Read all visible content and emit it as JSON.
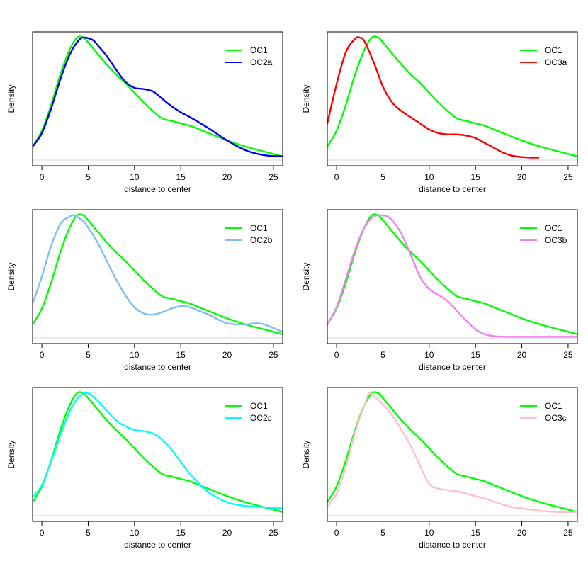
{
  "chart_data": [
    {
      "type": "line",
      "xlabel": "distance to center",
      "ylabel": "Density",
      "xlim": [
        -1,
        26
      ],
      "xticks": [
        0,
        5,
        10,
        15,
        20,
        25
      ],
      "ylim": [
        0,
        1
      ],
      "legend_position": "top-right",
      "series": [
        {
          "name": "OC1",
          "color": "#00ff00",
          "x": [
            -1,
            0,
            1,
            2,
            3,
            3.8,
            4.5,
            5,
            6,
            7,
            8,
            9,
            10,
            11,
            12,
            13,
            14,
            15,
            16,
            18,
            20,
            22,
            24,
            26
          ],
          "y": [
            0.11,
            0.24,
            0.45,
            0.7,
            0.9,
            1.0,
            1.0,
            0.96,
            0.87,
            0.78,
            0.7,
            0.63,
            0.55,
            0.47,
            0.4,
            0.34,
            0.32,
            0.3,
            0.28,
            0.22,
            0.16,
            0.11,
            0.07,
            0.03
          ]
        },
        {
          "name": "OC2a",
          "color": "#0000ee",
          "x": [
            -1,
            0,
            1,
            2,
            3,
            4,
            4.6,
            5.5,
            6,
            7,
            8,
            9,
            10,
            11,
            12,
            13,
            14,
            15,
            16,
            18,
            20,
            22,
            24,
            26
          ],
          "y": [
            0.11,
            0.22,
            0.42,
            0.66,
            0.86,
            0.98,
            1.0,
            0.98,
            0.94,
            0.85,
            0.74,
            0.64,
            0.59,
            0.58,
            0.56,
            0.5,
            0.44,
            0.39,
            0.35,
            0.26,
            0.16,
            0.08,
            0.04,
            0.03
          ]
        }
      ]
    },
    {
      "type": "line",
      "xlabel": "distance to center",
      "ylabel": "Density",
      "xlim": [
        -1,
        26
      ],
      "xticks": [
        0,
        5,
        10,
        15,
        20,
        25
      ],
      "ylim": [
        0,
        1
      ],
      "legend_position": "top-right",
      "series": [
        {
          "name": "OC1",
          "color": "#00ff00",
          "x": [
            -1,
            0,
            1,
            2,
            3,
            3.8,
            4.5,
            5,
            6,
            7,
            8,
            9,
            10,
            11,
            12,
            13,
            14,
            15,
            16,
            18,
            20,
            22,
            24,
            26
          ],
          "y": [
            0.11,
            0.24,
            0.45,
            0.7,
            0.9,
            1.0,
            1.0,
            0.96,
            0.87,
            0.78,
            0.7,
            0.63,
            0.55,
            0.47,
            0.4,
            0.34,
            0.32,
            0.3,
            0.28,
            0.22,
            0.16,
            0.11,
            0.07,
            0.03
          ]
        },
        {
          "name": "OC3a",
          "color": "#ff0000",
          "x": [
            -1,
            0,
            1,
            2,
            2.5,
            3,
            4,
            5,
            6,
            7,
            8,
            9,
            10,
            11,
            12,
            13,
            14,
            15,
            16,
            17,
            18,
            19,
            20,
            21,
            21.8
          ],
          "y": [
            0.3,
            0.62,
            0.88,
            0.99,
            1.0,
            0.97,
            0.8,
            0.6,
            0.47,
            0.4,
            0.35,
            0.3,
            0.25,
            0.22,
            0.21,
            0.21,
            0.2,
            0.18,
            0.14,
            0.1,
            0.06,
            0.035,
            0.025,
            0.02,
            0.02
          ]
        }
      ]
    },
    {
      "type": "line",
      "xlabel": "distance to center",
      "ylabel": "Density",
      "xlim": [
        -1,
        26
      ],
      "xticks": [
        0,
        5,
        10,
        15,
        20,
        25
      ],
      "ylim": [
        0,
        1
      ],
      "legend_position": "top-right",
      "series": [
        {
          "name": "OC1",
          "color": "#00ff00",
          "x": [
            -1,
            0,
            1,
            2,
            3,
            3.8,
            4.5,
            5,
            6,
            7,
            8,
            9,
            10,
            11,
            12,
            13,
            14,
            15,
            16,
            18,
            20,
            22,
            24,
            26
          ],
          "y": [
            0.11,
            0.24,
            0.45,
            0.7,
            0.9,
            1.0,
            1.0,
            0.96,
            0.87,
            0.78,
            0.7,
            0.63,
            0.55,
            0.47,
            0.4,
            0.34,
            0.32,
            0.3,
            0.28,
            0.22,
            0.16,
            0.11,
            0.07,
            0.03
          ]
        },
        {
          "name": "OC2b",
          "color": "#7ec0ee",
          "x": [
            -1,
            0,
            1,
            2,
            3,
            3.5,
            4.5,
            5,
            6,
            7,
            8,
            9,
            10,
            11,
            12,
            13,
            14,
            15,
            16,
            17,
            18,
            20,
            22,
            23,
            24,
            26
          ],
          "y": [
            0.28,
            0.5,
            0.75,
            0.93,
            0.99,
            1.0,
            0.95,
            0.9,
            0.78,
            0.63,
            0.48,
            0.35,
            0.25,
            0.2,
            0.19,
            0.21,
            0.24,
            0.26,
            0.25,
            0.22,
            0.19,
            0.12,
            0.11,
            0.12,
            0.11,
            0.05
          ]
        }
      ]
    },
    {
      "type": "line",
      "xlabel": "distance to center",
      "ylabel": "Density",
      "xlim": [
        -1,
        26
      ],
      "xticks": [
        0,
        5,
        10,
        15,
        20,
        25
      ],
      "ylim": [
        0,
        1
      ],
      "legend_position": "top-right",
      "series": [
        {
          "name": "OC1",
          "color": "#00ff00",
          "x": [
            -1,
            0,
            1,
            2,
            3,
            3.8,
            4.5,
            5,
            6,
            7,
            8,
            9,
            10,
            11,
            12,
            13,
            14,
            15,
            16,
            18,
            20,
            22,
            24,
            26
          ],
          "y": [
            0.11,
            0.24,
            0.45,
            0.7,
            0.9,
            1.0,
            1.0,
            0.96,
            0.87,
            0.78,
            0.7,
            0.63,
            0.55,
            0.47,
            0.4,
            0.34,
            0.32,
            0.3,
            0.28,
            0.22,
            0.16,
            0.11,
            0.07,
            0.03
          ]
        },
        {
          "name": "OC3b",
          "color": "#ee82ee",
          "x": [
            -1,
            0,
            1,
            2,
            3,
            4,
            5,
            5.5,
            6,
            7,
            8,
            9,
            10,
            11,
            12,
            13,
            14,
            15,
            16,
            17,
            18,
            20,
            22,
            24,
            26
          ],
          "y": [
            0.11,
            0.25,
            0.48,
            0.72,
            0.9,
            0.99,
            1.0,
            0.99,
            0.96,
            0.85,
            0.68,
            0.5,
            0.4,
            0.35,
            0.3,
            0.22,
            0.14,
            0.07,
            0.03,
            0.015,
            0.01,
            0.01,
            0.01,
            0.01,
            0.01
          ]
        }
      ]
    },
    {
      "type": "line",
      "xlabel": "distance to center",
      "ylabel": "Density",
      "xlim": [
        -1,
        26
      ],
      "xticks": [
        0,
        5,
        10,
        15,
        20,
        25
      ],
      "ylim": [
        0,
        1
      ],
      "legend_position": "top-right",
      "series": [
        {
          "name": "OC1",
          "color": "#00ff00",
          "x": [
            -1,
            0,
            1,
            2,
            3,
            3.8,
            4.5,
            5,
            6,
            7,
            8,
            9,
            10,
            11,
            12,
            13,
            14,
            15,
            16,
            18,
            20,
            22,
            24,
            26
          ],
          "y": [
            0.11,
            0.24,
            0.45,
            0.7,
            0.9,
            1.0,
            1.0,
            0.96,
            0.87,
            0.78,
            0.7,
            0.63,
            0.55,
            0.47,
            0.4,
            0.34,
            0.32,
            0.3,
            0.28,
            0.22,
            0.16,
            0.11,
            0.07,
            0.03
          ]
        },
        {
          "name": "OC2c",
          "color": "#00ffff",
          "x": [
            -1,
            0,
            1,
            2,
            3,
            4,
            5,
            6,
            7,
            8,
            9,
            10,
            11,
            12,
            13,
            14,
            15,
            16,
            17,
            18,
            20,
            22,
            24,
            26
          ],
          "y": [
            0.15,
            0.25,
            0.44,
            0.66,
            0.85,
            0.97,
            1.0,
            0.94,
            0.86,
            0.78,
            0.73,
            0.7,
            0.69,
            0.67,
            0.62,
            0.54,
            0.44,
            0.34,
            0.26,
            0.19,
            0.11,
            0.08,
            0.07,
            0.06
          ]
        }
      ]
    },
    {
      "type": "line",
      "xlabel": "distance to center",
      "ylabel": "Density",
      "xlim": [
        -1,
        26
      ],
      "xticks": [
        0,
        5,
        10,
        15,
        20,
        25
      ],
      "ylim": [
        0,
        1
      ],
      "legend_position": "top-right",
      "series": [
        {
          "name": "OC1",
          "color": "#00ff00",
          "x": [
            -1,
            0,
            1,
            2,
            3,
            3.8,
            4.5,
            5,
            6,
            7,
            8,
            9,
            10,
            11,
            12,
            13,
            14,
            15,
            16,
            18,
            20,
            22,
            24,
            26
          ],
          "y": [
            0.11,
            0.24,
            0.45,
            0.7,
            0.9,
            1.0,
            1.0,
            0.96,
            0.87,
            0.78,
            0.7,
            0.63,
            0.55,
            0.47,
            0.4,
            0.34,
            0.32,
            0.3,
            0.28,
            0.22,
            0.16,
            0.11,
            0.07,
            0.03
          ]
        },
        {
          "name": "OC3c",
          "color": "#ffc0cb",
          "x": [
            -1,
            0,
            1,
            2,
            3,
            3.5,
            4,
            5,
            6,
            7,
            8,
            9,
            10,
            11,
            12,
            13,
            14,
            15,
            16,
            18,
            19,
            20,
            22,
            24,
            26
          ],
          "y": [
            0.08,
            0.18,
            0.4,
            0.68,
            0.9,
            1.0,
            0.98,
            0.91,
            0.82,
            0.7,
            0.57,
            0.41,
            0.26,
            0.22,
            0.21,
            0.2,
            0.18,
            0.16,
            0.14,
            0.09,
            0.07,
            0.06,
            0.04,
            0.03,
            0.03
          ]
        }
      ]
    }
  ]
}
